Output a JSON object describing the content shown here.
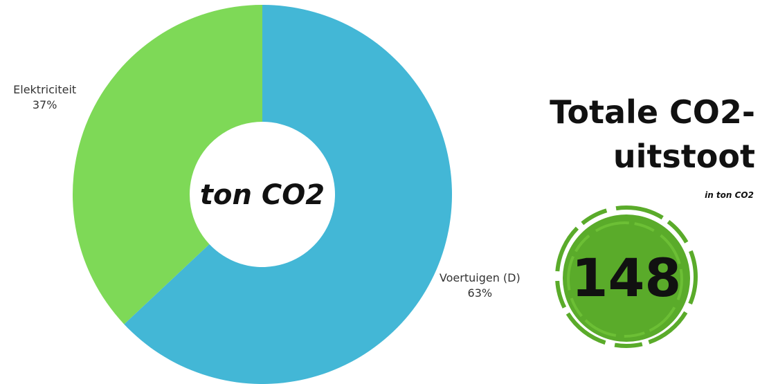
{
  "chart_data": {
    "type": "pie",
    "categories": [
      "Voertuigen (D)",
      "Elektriciteit"
    ],
    "values": [
      63,
      37
    ],
    "value_labels": [
      "63%",
      "37%"
    ],
    "colors": [
      "#43b7d6",
      "#7ed957"
    ],
    "center_label": "ton CO2"
  },
  "total": {
    "title": "Totale CO2-uitstoot",
    "subtitle": "in ton CO2",
    "value": 148
  }
}
